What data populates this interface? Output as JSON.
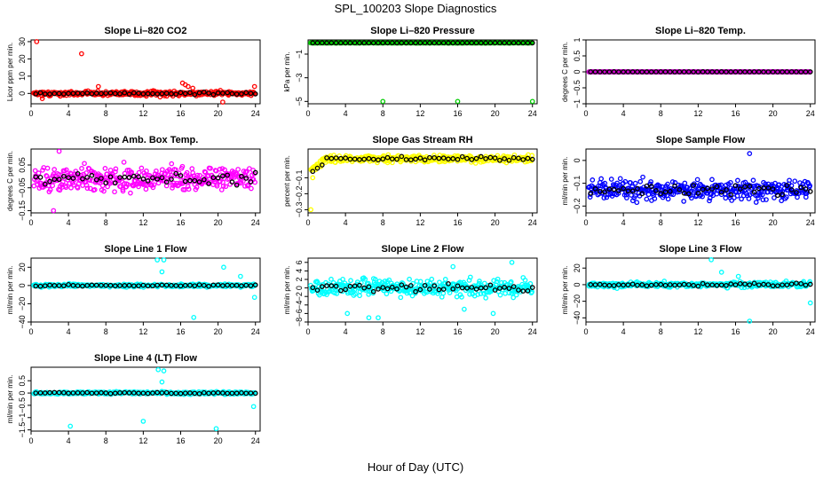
{
  "figure": {
    "title": "SPL_100203  Slope Diagnostics",
    "xlabel": "Hour of Day (UTC)"
  },
  "chart_data": [
    {
      "type": "scatter",
      "title": "Slope Li–820 CO2",
      "ylabel": "Licor ppm per min.",
      "xlim": [
        0,
        24.5
      ],
      "ylim": [
        -6,
        31
      ],
      "xticks": [
        0,
        4,
        8,
        12,
        16,
        20,
        24
      ],
      "yticks": [
        0,
        10,
        20,
        30
      ],
      "color": "#ff0000",
      "mean_color": "#000000",
      "base": 0,
      "noise": 1.2,
      "outliers": [
        [
          0.6,
          30
        ],
        [
          5.4,
          23
        ],
        [
          7.2,
          4
        ],
        [
          16.2,
          6
        ],
        [
          16.5,
          5
        ],
        [
          16.8,
          4
        ],
        [
          17.3,
          3
        ],
        [
          20.5,
          -5
        ],
        [
          23.9,
          4
        ],
        [
          1.2,
          -3
        ],
        [
          13.8,
          -2
        ]
      ]
    },
    {
      "type": "scatter",
      "title": "Slope Li–820 Pressure",
      "ylabel": "kPa per min.",
      "xlim": [
        0,
        24.5
      ],
      "ylim": [
        -5.2,
        0.2
      ],
      "xticks": [
        0,
        4,
        8,
        12,
        16,
        20,
        24
      ],
      "yticks": [
        -5,
        -3,
        -1
      ],
      "color": "#00cc00",
      "mean_color": "#000000",
      "base": -0.05,
      "noise": 0.01,
      "outliers": [
        [
          8,
          -5
        ],
        [
          16,
          -5
        ],
        [
          24,
          -5
        ]
      ]
    },
    {
      "type": "scatter",
      "title": "Slope Li–820 Temp.",
      "ylabel": "degrees C per min.",
      "xlim": [
        0,
        24.5
      ],
      "ylim": [
        -1,
        1
      ],
      "xticks": [
        0,
        4,
        8,
        12,
        16,
        20,
        24
      ],
      "yticks": [
        -1,
        -0.5,
        0,
        0.5,
        1
      ],
      "color": "#cc00cc",
      "mean_color": "#000000",
      "base": 0,
      "noise": 0.005,
      "outliers": []
    },
    {
      "type": "scatter",
      "title": "Slope Amb. Box Temp.",
      "ylabel": "degrees C per min.",
      "xlim": [
        0,
        24.5
      ],
      "ylim": [
        -0.16,
        0.12
      ],
      "xticks": [
        0,
        4,
        8,
        12,
        16,
        20,
        24
      ],
      "yticks": [
        -0.15,
        -0.05,
        0.05
      ],
      "color": "#ff00ff",
      "mean_color": "#000000",
      "base": -0.01,
      "noise": 0.05,
      "outliers": [
        [
          2.4,
          -0.15
        ],
        [
          3.0,
          0.11
        ]
      ]
    },
    {
      "type": "scatter",
      "title": "Slope Gas Stream RH",
      "ylabel": "percent per min.",
      "xlim": [
        0,
        24.5
      ],
      "ylim": [
        -0.32,
        0.08
      ],
      "xticks": [
        0,
        4,
        8,
        12,
        16,
        20,
        24
      ],
      "yticks": [
        -0.3,
        -0.2,
        -0.1
      ],
      "color": "#ffff00",
      "mean_color": "#000000",
      "base": 0.02,
      "noise": 0.02,
      "outliers": [
        [
          0.3,
          -0.3
        ],
        [
          0.5,
          -0.1
        ],
        [
          0.8,
          -0.05
        ]
      ]
    },
    {
      "type": "scatter",
      "title": "Slope Sample Flow",
      "ylabel": "ml/min per min.",
      "xlim": [
        0,
        24.5
      ],
      "ylim": [
        -0.23,
        0.05
      ],
      "xticks": [
        0,
        4,
        8,
        12,
        16,
        20,
        24
      ],
      "yticks": [
        -0.2,
        -0.1,
        0
      ],
      "color": "#0000ff",
      "mean_color": "#000000",
      "base": -0.13,
      "noise": 0.04,
      "outliers": [
        [
          17.5,
          0.03
        ]
      ]
    },
    {
      "type": "scatter",
      "title": "Slope Line 1 Flow",
      "ylabel": "ml/min per min.",
      "xlim": [
        0,
        24.5
      ],
      "ylim": [
        -40,
        30
      ],
      "xticks": [
        0,
        4,
        8,
        12,
        16,
        20,
        24
      ],
      "yticks": [
        -40,
        -20,
        0,
        20
      ],
      "color": "#00ffff",
      "mean_color": "#000000",
      "base": 0,
      "noise": 1.5,
      "outliers": [
        [
          13.5,
          28
        ],
        [
          14.2,
          28
        ],
        [
          14.0,
          15
        ],
        [
          20.6,
          20
        ],
        [
          22.4,
          10
        ],
        [
          23.9,
          -13
        ],
        [
          17.4,
          -35
        ]
      ]
    },
    {
      "type": "scatter",
      "title": "Slope Line 2 Flow",
      "ylabel": "ml/min per min.",
      "xlim": [
        0,
        24.5
      ],
      "ylim": [
        -8,
        7
      ],
      "xticks": [
        0,
        4,
        8,
        12,
        16,
        20,
        24
      ],
      "yticks": [
        -8,
        -6,
        -4,
        -2,
        0,
        2,
        4,
        6
      ],
      "color": "#00ffff",
      "mean_color": "#000000",
      "base": 0,
      "noise": 1.8,
      "outliers": [
        [
          15.5,
          5
        ],
        [
          21.8,
          6
        ],
        [
          6.5,
          -7
        ],
        [
          7.5,
          -7
        ],
        [
          4.2,
          -6
        ],
        [
          16.7,
          -5
        ],
        [
          19.8,
          -6
        ]
      ]
    },
    {
      "type": "scatter",
      "title": "Slope Line 3 Flow",
      "ylabel": "ml/min per min.",
      "xlim": [
        0,
        24.5
      ],
      "ylim": [
        -45,
        32
      ],
      "xticks": [
        0,
        4,
        8,
        12,
        16,
        20,
        24
      ],
      "yticks": [
        -40,
        -20,
        0,
        20
      ],
      "color": "#00ffff",
      "mean_color": "#000000",
      "base": 0,
      "noise": 3,
      "outliers": [
        [
          13.4,
          30
        ],
        [
          17.5,
          -44
        ],
        [
          24,
          -22
        ],
        [
          16.3,
          10
        ],
        [
          14.5,
          15
        ]
      ]
    },
    {
      "type": "scatter",
      "title": "Slope Line 4 (LT) Flow",
      "ylabel": "ml/min per min.",
      "xlim": [
        0,
        24.5
      ],
      "ylim": [
        -1.55,
        1.05
      ],
      "xticks": [
        0,
        4,
        8,
        12,
        16,
        20,
        24
      ],
      "yticks": [
        -1.5,
        -1,
        -0.5,
        0,
        0.5
      ],
      "color": "#00ffff",
      "mean_color": "#000000",
      "base": 0,
      "noise": 0.05,
      "outliers": [
        [
          13.6,
          0.95
        ],
        [
          14.2,
          0.9
        ],
        [
          12.0,
          -1.15
        ],
        [
          4.2,
          -1.35
        ],
        [
          19.8,
          -1.45
        ],
        [
          23.8,
          -0.55
        ],
        [
          14.0,
          0.45
        ]
      ]
    }
  ]
}
